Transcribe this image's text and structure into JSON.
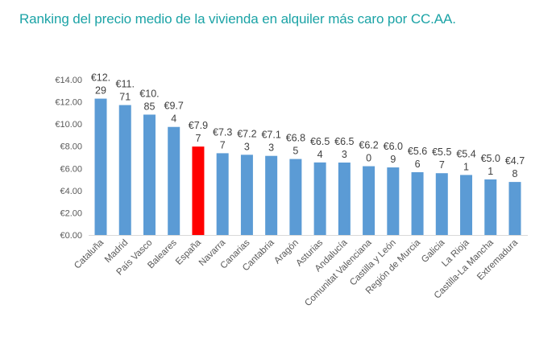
{
  "chart_data": {
    "type": "bar",
    "title": "Ranking del precio medio de la vivienda en alquiler más caro por CC.AA.",
    "xlabel": "",
    "ylabel": "",
    "ylim": [
      0,
      14
    ],
    "yticks": [
      "€0.00",
      "€2.00",
      "€4.00",
      "€6.00",
      "€8.00",
      "€10.00",
      "€12.00",
      "€14.00"
    ],
    "grid": false,
    "categories": [
      "Cataluña",
      "Madrid",
      "País Vasco",
      "Baleares",
      "España",
      "Navarra",
      "Canarias",
      "Cantabria",
      "Aragón",
      "Asturias",
      "Andalucía",
      "Comunitat Valenciana",
      "Castilla y León",
      "Región de Murcia",
      "Galicia",
      "La Rioja",
      "Castilla-La Mancha",
      "Extremadura"
    ],
    "values": [
      12.29,
      11.71,
      10.85,
      9.74,
      7.97,
      7.37,
      7.23,
      7.13,
      6.85,
      6.54,
      6.53,
      6.2,
      6.09,
      5.66,
      5.57,
      5.41,
      5.01,
      4.78
    ],
    "data_labels": [
      "€12.29",
      "€11.71",
      "€10.85",
      "€9.74",
      "€7.97",
      "€7.37",
      "€7.23",
      "€7.13",
      "€6.85",
      "€6.54",
      "€6.53",
      "€6.20",
      "€6.09",
      "€5.66",
      "€5.57",
      "€5.41",
      "€5.01",
      "€4.78"
    ],
    "colors": {
      "default": "#5b9bd5",
      "highlight": "#ff0000",
      "highlight_category": "España",
      "title": "#1ba3a6"
    }
  }
}
